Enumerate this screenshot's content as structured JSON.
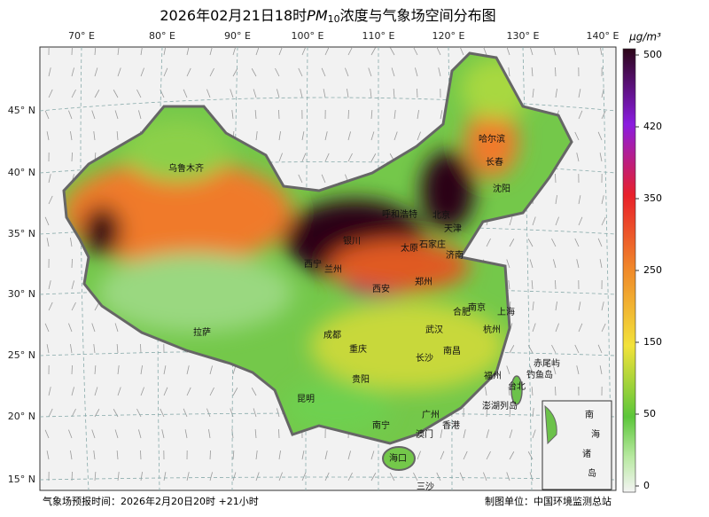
{
  "title": {
    "prefix": "2026年02月21日18时",
    "symbol": "PM",
    "subscript": "10",
    "suffix": "浓度与气象场空间分布图"
  },
  "lon_labels": [
    "70° E",
    "80° E",
    "90° E",
    "100° E",
    "110° E",
    "120° E",
    "130° E",
    "140° E"
  ],
  "lat_labels": [
    "45° N",
    "40° N",
    "35° N",
    "30° N",
    "25° N",
    "20° N",
    "15° N"
  ],
  "colorbar": {
    "unit": "μg/m³",
    "ticks": [
      0,
      50,
      150,
      250,
      350,
      420,
      500
    ]
  },
  "cities": [
    "乌鲁木齐",
    "哈尔滨",
    "长春",
    "沈阳",
    "呼和浩特",
    "北京",
    "天津",
    "银川",
    "太原",
    "石家庄",
    "济南",
    "西宁",
    "兰州",
    "西安",
    "郑州",
    "合肥",
    "南京",
    "上海",
    "拉萨",
    "成都",
    "武汉",
    "杭州",
    "重庆",
    "南昌",
    "长沙",
    "福州",
    "贵阳",
    "台北",
    "赤尾屿",
    "钓鱼岛",
    "昆明",
    "澎湖列岛",
    "广州",
    "南宁",
    "香港",
    "澳门",
    "海口",
    "三沙"
  ],
  "inset": [
    "南",
    "海",
    "诸",
    "岛"
  ],
  "footer": {
    "left": "气象场预报时间：2026年2月20日20时 +21小时",
    "right": "制图单位：中国环境监测总站"
  }
}
